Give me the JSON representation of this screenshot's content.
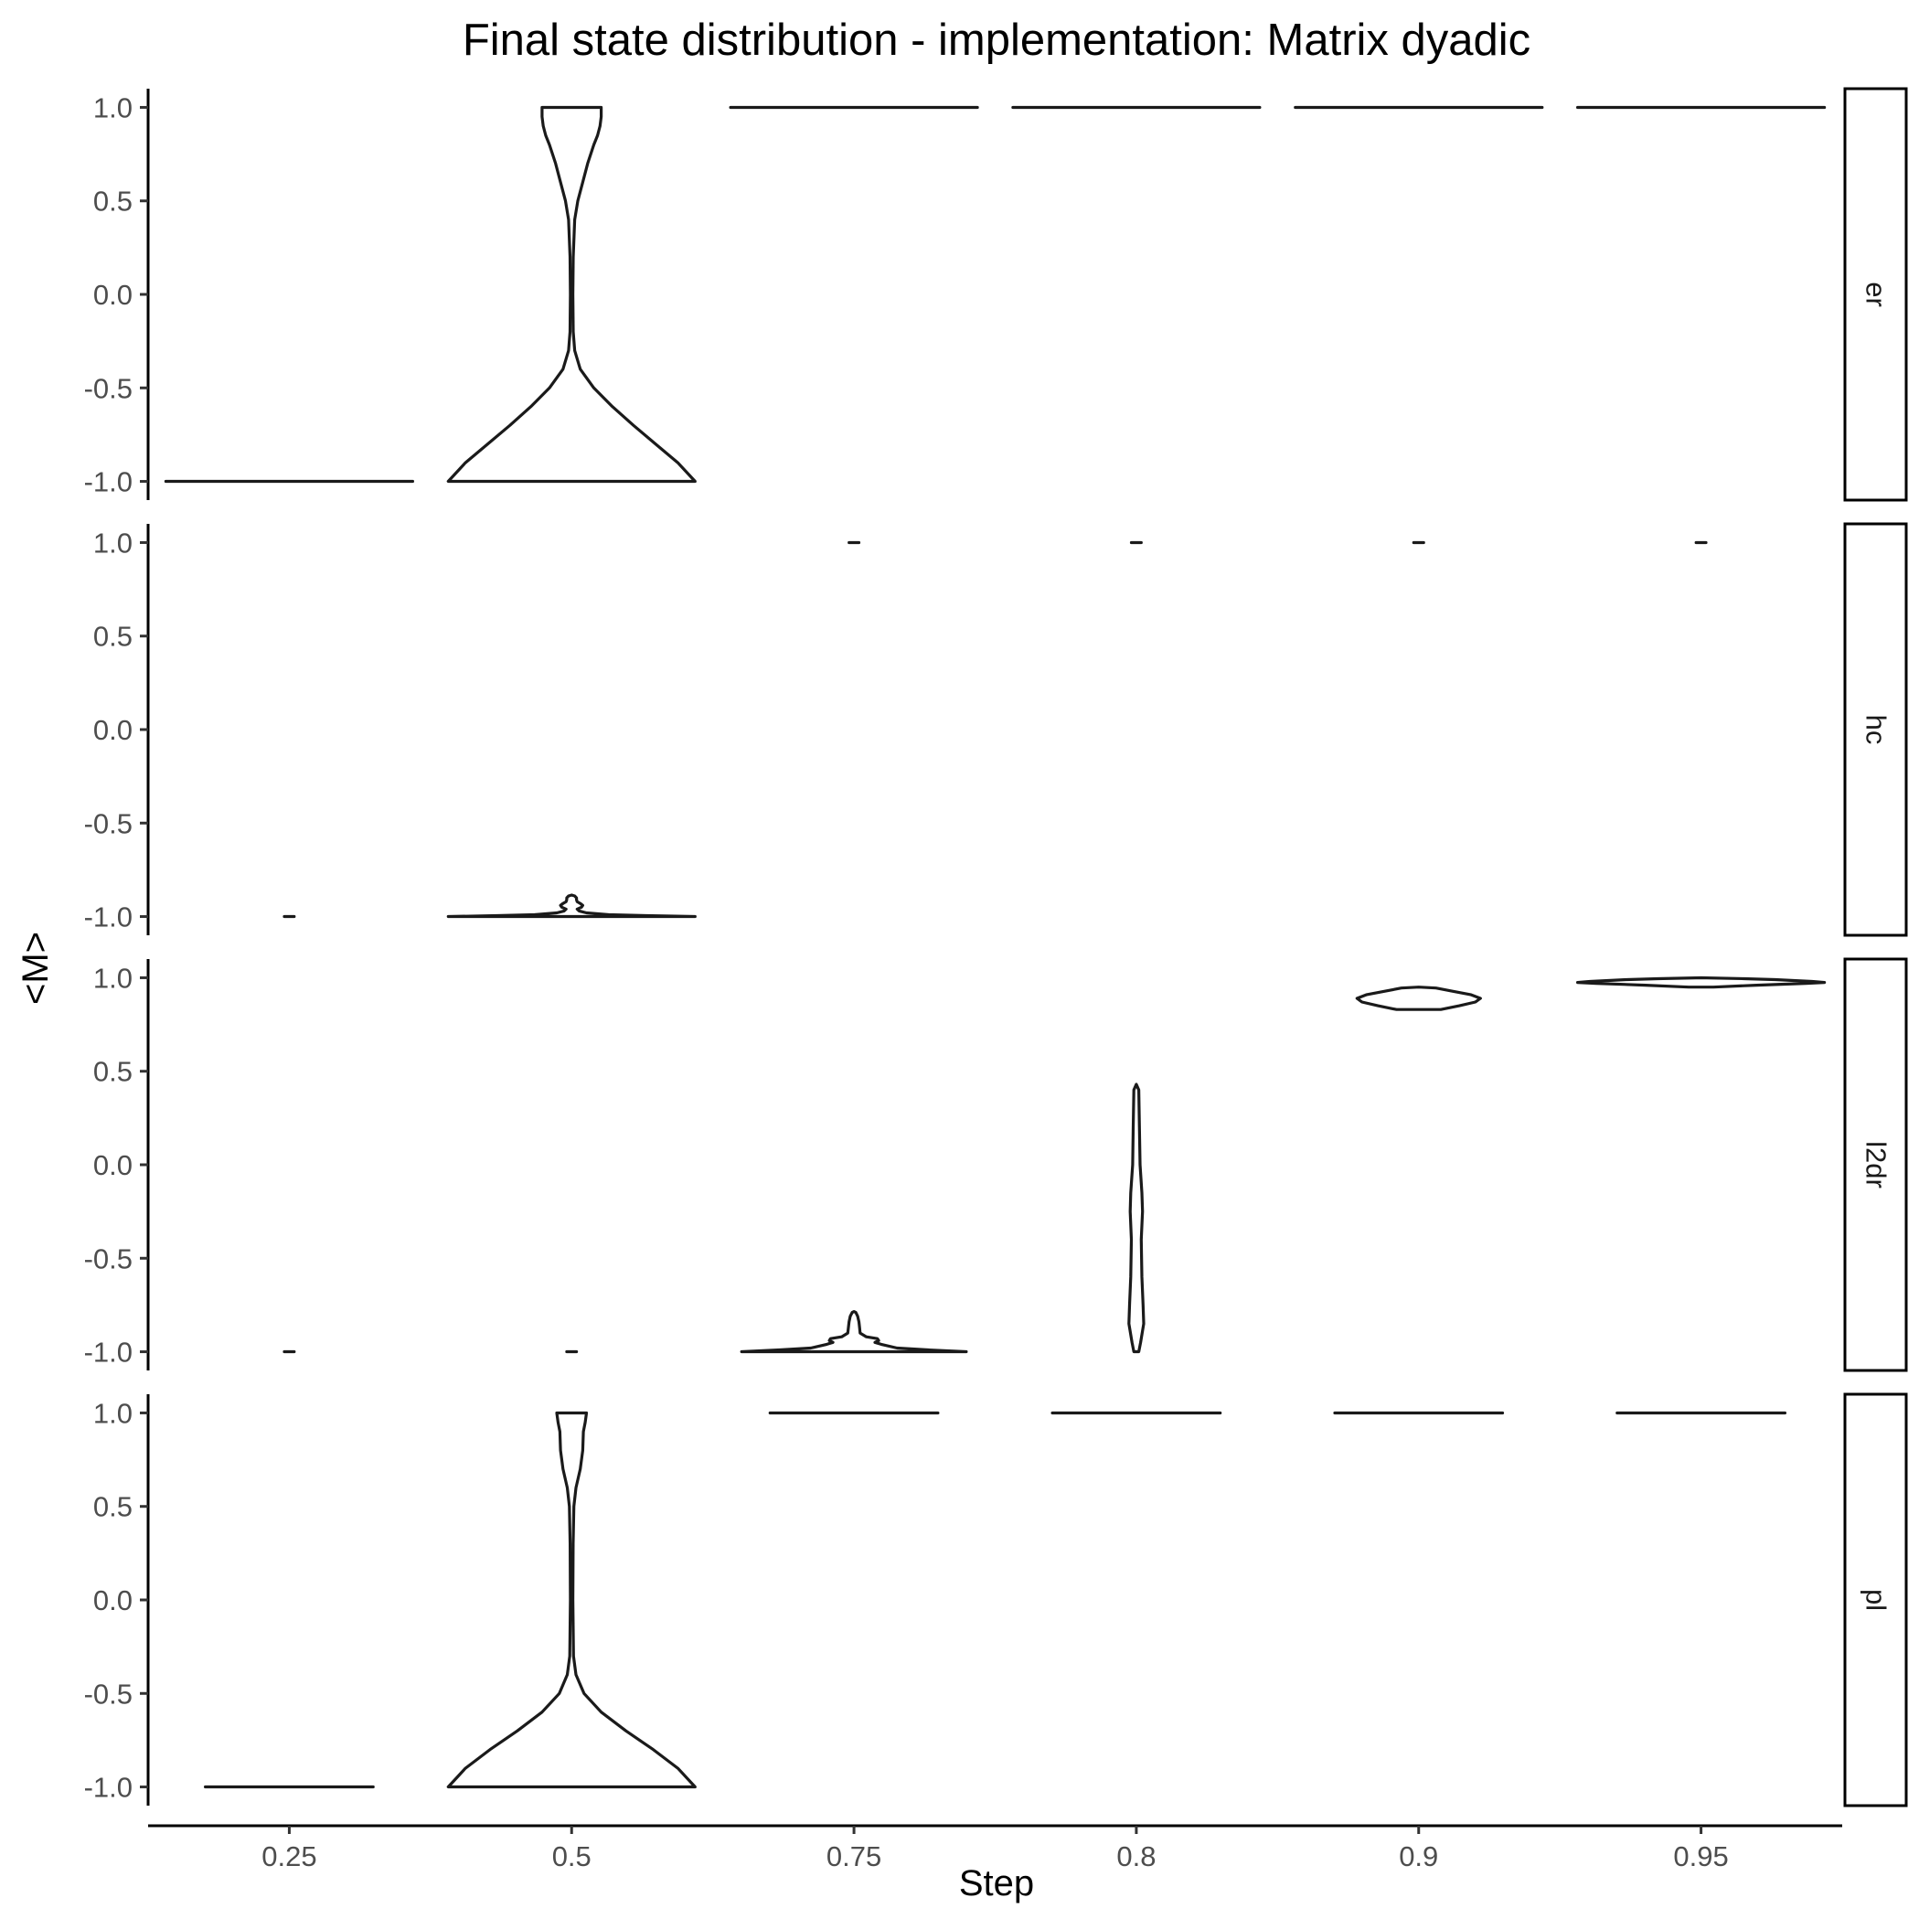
{
  "chart_data": {
    "type": "violin",
    "title": "Final state distribution - implementation: Matrix dyadic",
    "xlabel": "Step",
    "ylabel": "<M>",
    "categories": [
      "0.25",
      "0.5",
      "0.75",
      "0.8",
      "0.9",
      "0.95"
    ],
    "ylim": [
      -1.1,
      1.1
    ],
    "yticks": [
      -1.0,
      -0.5,
      0.0,
      0.5,
      1.0
    ],
    "ytick_labels": [
      "-1.0",
      "-0.5",
      "0.0",
      "0.5",
      "1.0"
    ],
    "grid": false,
    "facet_labels": [
      "er",
      "hc",
      "l2dr",
      "pl"
    ],
    "panels": [
      {
        "facet": "er",
        "violins": [
          {
            "step": "0.25",
            "profile": [
              [
                -1.0,
                1.0
              ],
              [
                -1.0,
                0.0
              ]
            ]
          },
          {
            "step": "0.5",
            "profile": [
              [
                -1.0,
                1.0
              ],
              [
                -0.9,
                0.86
              ],
              [
                -0.8,
                0.68
              ],
              [
                -0.7,
                0.5
              ],
              [
                -0.6,
                0.33
              ],
              [
                -0.5,
                0.18
              ],
              [
                -0.4,
                0.07
              ],
              [
                -0.3,
                0.025
              ],
              [
                -0.2,
                0.013
              ],
              [
                0.0,
                0.01
              ],
              [
                0.2,
                0.013
              ],
              [
                0.4,
                0.025
              ],
              [
                0.5,
                0.05
              ],
              [
                0.6,
                0.09
              ],
              [
                0.7,
                0.13
              ],
              [
                0.8,
                0.18
              ],
              [
                0.85,
                0.21
              ],
              [
                0.9,
                0.23
              ],
              [
                0.95,
                0.24
              ],
              [
                1.0,
                0.24
              ],
              [
                1.0,
                0.0
              ]
            ]
          },
          {
            "step": "0.75",
            "profile": [
              [
                1.0,
                1.0
              ],
              [
                1.0,
                0.0
              ]
            ]
          },
          {
            "step": "0.8",
            "profile": [
              [
                1.0,
                1.0
              ],
              [
                1.0,
                0.0
              ]
            ]
          },
          {
            "step": "0.9",
            "profile": [
              [
                1.0,
                1.0
              ],
              [
                1.0,
                0.0
              ]
            ]
          },
          {
            "step": "0.95",
            "profile": [
              [
                1.0,
                1.0
              ],
              [
                1.0,
                0.0
              ]
            ]
          }
        ]
      },
      {
        "facet": "hc",
        "violins": [
          {
            "step": "0.25",
            "profile": [
              [
                -1.0,
                0.04
              ],
              [
                -1.0,
                0.0
              ]
            ]
          },
          {
            "step": "0.5",
            "profile": [
              [
                -1.0,
                1.0
              ],
              [
                -0.995,
                0.6
              ],
              [
                -0.99,
                0.3
              ],
              [
                -0.98,
                0.12
              ],
              [
                -0.97,
                0.06
              ],
              [
                -0.96,
                0.045
              ],
              [
                -0.95,
                0.08
              ],
              [
                -0.94,
                0.09
              ],
              [
                -0.93,
                0.07
              ],
              [
                -0.92,
                0.045
              ],
              [
                -0.91,
                0.04
              ],
              [
                -0.9,
                0.04
              ],
              [
                -0.89,
                0.025
              ],
              [
                -0.885,
                0.0
              ]
            ]
          },
          {
            "step": "0.75",
            "profile": [
              [
                1.0,
                0.04
              ],
              [
                1.0,
                0.0
              ]
            ]
          },
          {
            "step": "0.8",
            "profile": [
              [
                1.0,
                0.04
              ],
              [
                1.0,
                0.0
              ]
            ]
          },
          {
            "step": "0.9",
            "profile": [
              [
                1.0,
                0.04
              ],
              [
                1.0,
                0.0
              ]
            ]
          },
          {
            "step": "0.95",
            "profile": [
              [
                1.0,
                0.04
              ],
              [
                1.0,
                0.0
              ]
            ]
          }
        ]
      },
      {
        "facet": "l2dr",
        "violins": [
          {
            "step": "0.25",
            "profile": [
              [
                -1.0,
                0.04
              ],
              [
                -1.0,
                0.0
              ]
            ]
          },
          {
            "step": "0.5",
            "profile": [
              [
                -1.0,
                0.04
              ],
              [
                -1.0,
                0.0
              ]
            ]
          },
          {
            "step": "0.75",
            "profile": [
              [
                -1.0,
                0.91
              ],
              [
                -0.99,
                0.6
              ],
              [
                -0.98,
                0.35
              ],
              [
                -0.96,
                0.22
              ],
              [
                -0.95,
                0.17
              ],
              [
                -0.94,
                0.2
              ],
              [
                -0.93,
                0.19
              ],
              [
                -0.92,
                0.1
              ],
              [
                -0.9,
                0.05
              ],
              [
                -0.87,
                0.045
              ],
              [
                -0.84,
                0.04
              ],
              [
                -0.81,
                0.03
              ],
              [
                -0.79,
                0.015
              ],
              [
                -0.785,
                0.0
              ]
            ]
          },
          {
            "step": "0.8",
            "profile": [
              [
                -1.0,
                0.02
              ],
              [
                -0.95,
                0.035
              ],
              [
                -0.85,
                0.06
              ],
              [
                -0.75,
                0.055
              ],
              [
                -0.6,
                0.045
              ],
              [
                -0.4,
                0.04
              ],
              [
                -0.25,
                0.05
              ],
              [
                -0.15,
                0.045
              ],
              [
                0.0,
                0.03
              ],
              [
                0.2,
                0.025
              ],
              [
                0.4,
                0.02
              ],
              [
                0.43,
                0.0
              ]
            ]
          },
          {
            "step": "0.9",
            "profile": [
              [
                0.83,
                0.18
              ],
              [
                0.85,
                0.33
              ],
              [
                0.87,
                0.46
              ],
              [
                0.89,
                0.5
              ],
              [
                0.91,
                0.42
              ],
              [
                0.93,
                0.26
              ],
              [
                0.945,
                0.14
              ],
              [
                0.95,
                0.0
              ]
            ]
          },
          {
            "step": "0.95",
            "profile": [
              [
                0.95,
                0.1
              ],
              [
                0.96,
                0.45
              ],
              [
                0.97,
                0.85
              ],
              [
                0.975,
                1.0
              ],
              [
                0.98,
                0.9
              ],
              [
                0.99,
                0.6
              ],
              [
                0.995,
                0.35
              ],
              [
                1.0,
                0.0
              ]
            ]
          }
        ]
      },
      {
        "facet": "pl",
        "violins": [
          {
            "step": "0.25",
            "profile": [
              [
                -1.0,
                0.68
              ],
              [
                -1.0,
                0.0
              ]
            ]
          },
          {
            "step": "0.5",
            "profile": [
              [
                -1.0,
                1.0
              ],
              [
                -0.9,
                0.86
              ],
              [
                -0.8,
                0.66
              ],
              [
                -0.7,
                0.44
              ],
              [
                -0.6,
                0.24
              ],
              [
                -0.5,
                0.1
              ],
              [
                -0.4,
                0.035
              ],
              [
                -0.3,
                0.015
              ],
              [
                0.0,
                0.01
              ],
              [
                0.3,
                0.012
              ],
              [
                0.5,
                0.018
              ],
              [
                0.6,
                0.035
              ],
              [
                0.7,
                0.07
              ],
              [
                0.8,
                0.09
              ],
              [
                0.9,
                0.095
              ],
              [
                0.95,
                0.11
              ],
              [
                1.0,
                0.12
              ],
              [
                1.0,
                0.0
              ]
            ]
          },
          {
            "step": "0.75",
            "profile": [
              [
                1.0,
                0.68
              ],
              [
                1.0,
                0.0
              ]
            ]
          },
          {
            "step": "0.8",
            "profile": [
              [
                1.0,
                0.68
              ],
              [
                1.0,
                0.0
              ]
            ]
          },
          {
            "step": "0.9",
            "profile": [
              [
                1.0,
                0.68
              ],
              [
                1.0,
                0.0
              ]
            ]
          },
          {
            "step": "0.95",
            "profile": [
              [
                1.0,
                0.68
              ],
              [
                1.0,
                0.0
              ]
            ]
          }
        ]
      }
    ]
  }
}
